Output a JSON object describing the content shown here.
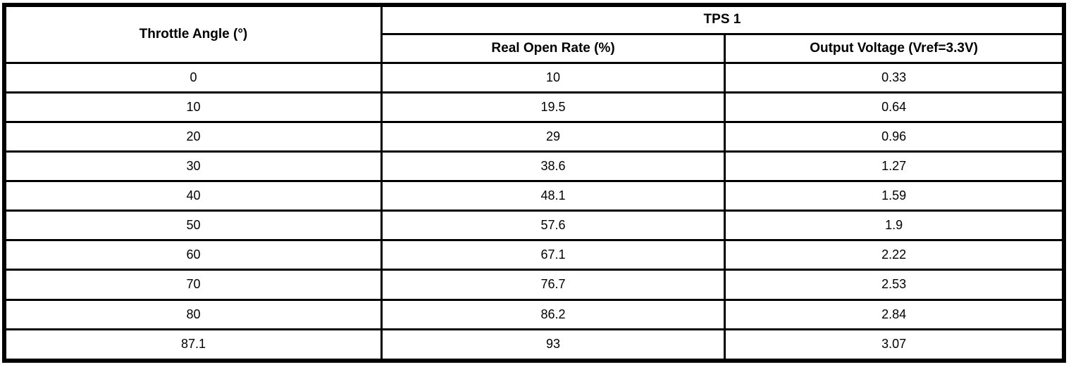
{
  "table": {
    "columns": {
      "throttle_angle": "Throttle Angle (°)",
      "tps1_group": "TPS 1",
      "real_open_rate": "Real Open Rate (%)",
      "output_voltage": "Output Voltage (Vref=3.3V)"
    },
    "rows": [
      {
        "angle": "0",
        "rate": "10",
        "voltage": "0.33"
      },
      {
        "angle": "10",
        "rate": "19.5",
        "voltage": "0.64"
      },
      {
        "angle": "20",
        "rate": "29",
        "voltage": "0.96"
      },
      {
        "angle": "30",
        "rate": "38.6",
        "voltage": "1.27"
      },
      {
        "angle": "40",
        "rate": "48.1",
        "voltage": "1.59"
      },
      {
        "angle": "50",
        "rate": "57.6",
        "voltage": "1.9"
      },
      {
        "angle": "60",
        "rate": "67.1",
        "voltage": "2.22"
      },
      {
        "angle": "70",
        "rate": "76.7",
        "voltage": "2.53"
      },
      {
        "angle": "80",
        "rate": "86.2",
        "voltage": "2.84"
      },
      {
        "angle": "87.1",
        "rate": "93",
        "voltage": "3.07"
      }
    ]
  },
  "colors": {
    "border": "#000000",
    "text": "#000000",
    "background": "#ffffff"
  },
  "chart_data": {
    "type": "table",
    "title": "TPS 1",
    "columns": [
      "Throttle Angle (°)",
      "Real Open Rate (%)",
      "Output Voltage (Vref=3.3V)"
    ],
    "throttle_angle_deg": [
      0,
      10,
      20,
      30,
      40,
      50,
      60,
      70,
      80,
      87.1
    ],
    "real_open_rate_pct": [
      10,
      19.5,
      29,
      38.6,
      48.1,
      57.6,
      67.1,
      76.7,
      86.2,
      93
    ],
    "output_voltage_v": [
      0.33,
      0.64,
      0.96,
      1.27,
      1.59,
      1.9,
      2.22,
      2.53,
      2.84,
      3.07
    ],
    "vref": "3.3V"
  }
}
